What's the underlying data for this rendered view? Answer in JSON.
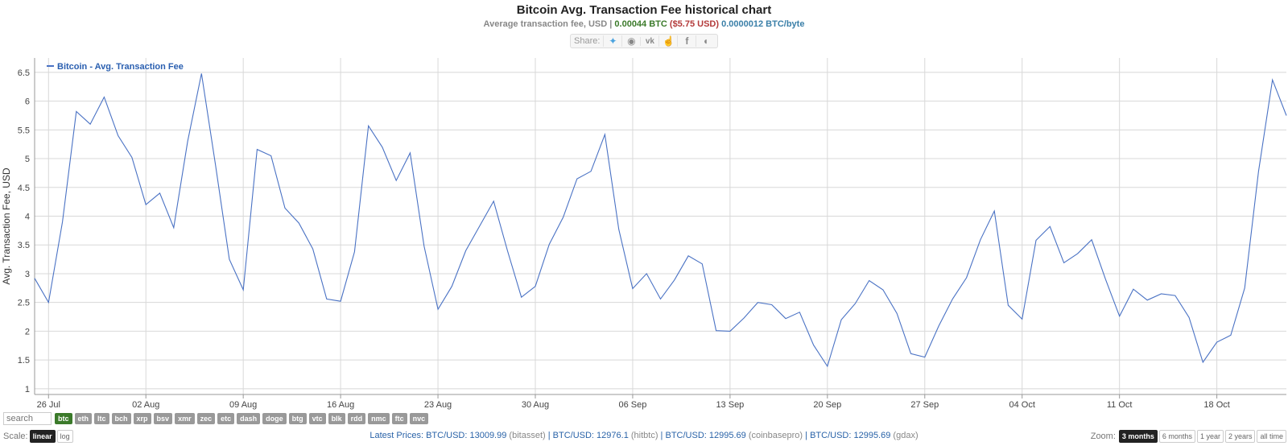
{
  "header": {
    "title": "Bitcoin Avg. Transaction Fee historical chart",
    "subtitle_prefix": "Average transaction fee, USD",
    "btc_value": "0.00044 BTC",
    "usd_value": "($5.75 USD)",
    "byte_value": "0.0000012 BTC/byte",
    "share_label": "Share:"
  },
  "share_icons": [
    "twitter-icon",
    "reddit-icon",
    "vk-icon",
    "like-icon",
    "facebook-icon",
    "weibo-icon"
  ],
  "colors": {
    "line": "#4a72c4",
    "grid": "#d8d8d8",
    "active_coin": "#3b7a2a"
  },
  "chart_data": {
    "type": "line",
    "title": "",
    "ylabel": "Avg. Transaction Fee, USD",
    "xlabel": "",
    "ylim": [
      0.9,
      6.75
    ],
    "yticks": [
      1,
      1.5,
      2,
      2.5,
      3,
      3.5,
      4,
      4.5,
      5,
      5.5,
      6,
      6.5
    ],
    "x_start": "2019-07-25",
    "xticks": [
      "26 Jul",
      "02 Aug",
      "09 Aug",
      "16 Aug",
      "23 Aug",
      "30 Aug",
      "06 Sep",
      "13 Sep",
      "20 Sep",
      "27 Sep",
      "04 Oct",
      "11 Oct",
      "18 Oct"
    ],
    "legend": "Bitcoin - Avg. Transaction Fee",
    "legend_position": "top-left",
    "grid": true,
    "series": [
      {
        "name": "Bitcoin - Avg. Transaction Fee",
        "values": [
          2.92,
          2.5,
          3.9,
          5.82,
          5.6,
          6.07,
          5.4,
          5.02,
          4.2,
          4.4,
          3.8,
          5.3,
          6.48,
          4.9,
          3.25,
          2.72,
          5.16,
          5.05,
          4.14,
          3.88,
          3.43,
          2.56,
          2.52,
          3.38,
          5.57,
          5.2,
          4.62,
          5.1,
          3.48,
          2.38,
          2.78,
          3.4,
          3.83,
          4.26,
          3.4,
          2.59,
          2.78,
          3.51,
          3.98,
          4.65,
          4.78,
          5.42,
          3.77,
          2.74,
          3.0,
          2.56,
          2.89,
          3.31,
          3.17,
          2.01,
          2.0,
          2.23,
          2.5,
          2.46,
          2.22,
          2.33,
          1.76,
          1.39,
          2.2,
          2.48,
          2.88,
          2.72,
          2.31,
          1.61,
          1.55,
          2.09,
          2.56,
          2.93,
          3.59,
          4.09,
          2.45,
          2.21,
          3.58,
          3.82,
          3.19,
          3.35,
          3.59,
          2.9,
          2.26,
          2.73,
          2.54,
          2.65,
          2.62,
          2.24,
          1.46,
          1.81,
          1.93,
          2.75,
          4.78,
          6.37,
          5.75
        ]
      }
    ]
  },
  "coins": [
    "btc",
    "eth",
    "ltc",
    "bch",
    "xrp",
    "bsv",
    "xmr",
    "zec",
    "etc",
    "dash",
    "doge",
    "btg",
    "vtc",
    "blk",
    "rdd",
    "nmc",
    "ftc",
    "nvc"
  ],
  "active_coin": "btc",
  "search": {
    "placeholder": "search"
  },
  "scale": {
    "label": "Scale:",
    "options": [
      "linear",
      "log"
    ],
    "active": "linear"
  },
  "prices": {
    "label": "Latest Prices:",
    "items": [
      {
        "pair": "BTC/USD: 13009.99",
        "source": "(bitasset)"
      },
      {
        "pair": "BTC/USD: 12976.1",
        "source": "(hitbtc)"
      },
      {
        "pair": "BTC/USD: 12995.69",
        "source": "(coinbasepro)"
      },
      {
        "pair": "BTC/USD: 12995.69",
        "source": "(gdax)"
      }
    ]
  },
  "zoom": {
    "label": "Zoom:",
    "options": [
      "3 months",
      "6 months",
      "1 year",
      "2 years",
      "all time"
    ],
    "active": "3 months"
  }
}
